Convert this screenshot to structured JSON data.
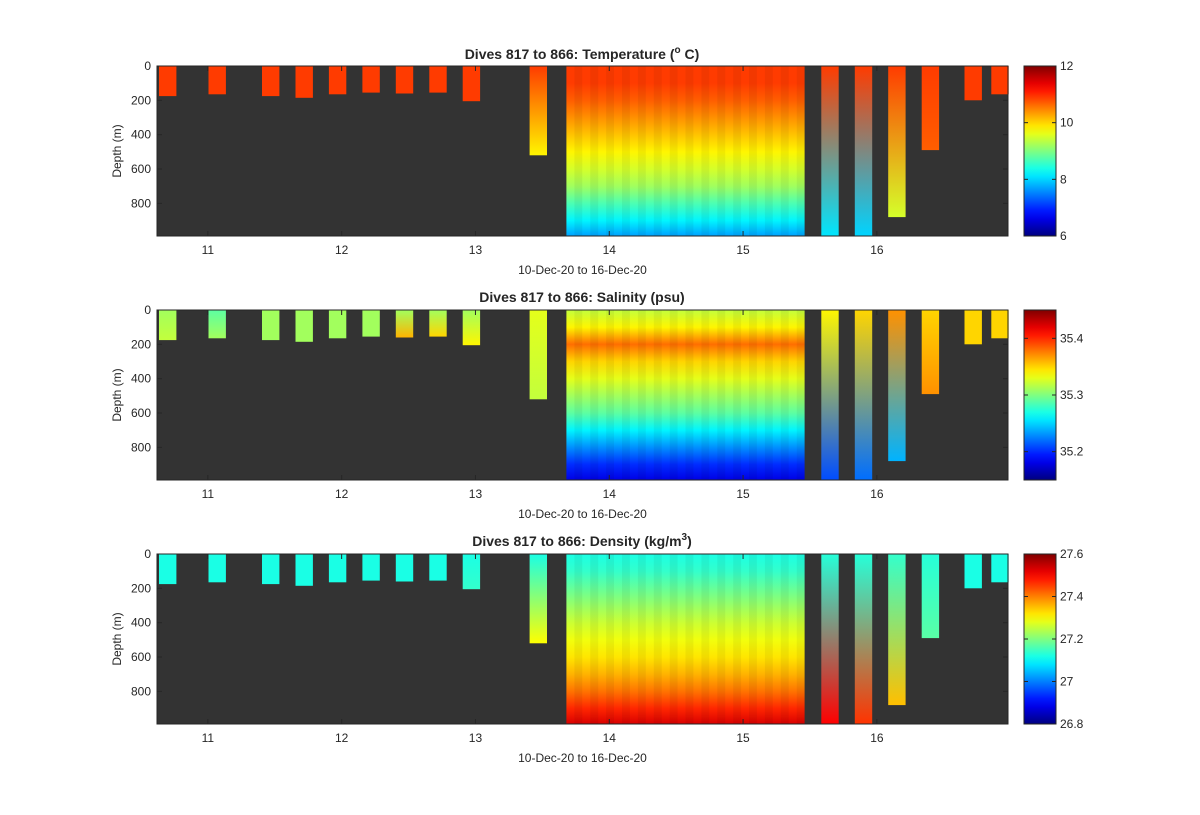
{
  "figure_label": "10-Dec-20 to 16-Dec-20",
  "colors": {
    "background": "#333333",
    "axis": "#262626",
    "colormap": "jet"
  },
  "chart_data": [
    {
      "type": "heatmap",
      "variable": "temperature",
      "title": "Dives 817 to 866: Temperature (° C)",
      "title_parts": {
        "pre": "Dives 817 to 866: Temperature (",
        "sup": "o",
        "post": " C)"
      },
      "xlabel": "10-Dec-20 to 16-Dec-20",
      "ylabel": "Depth (m)",
      "xlim": [
        10.62,
        16.98
      ],
      "ylim": [
        0,
        990
      ],
      "y_reversed": true,
      "x_ticks": [
        11,
        12,
        13,
        14,
        15,
        16
      ],
      "y_ticks": [
        0,
        200,
        400,
        600,
        800
      ],
      "colorbar": {
        "clim": [
          6,
          12
        ],
        "ticks": [
          6,
          8,
          10,
          12
        ]
      },
      "profiles": [
        {
          "x": 10.7,
          "max_depth": 175,
          "surface": 10.9,
          "bottom": 10.9
        },
        {
          "x": 11.07,
          "max_depth": 165,
          "surface": 10.9,
          "bottom": 10.9
        },
        {
          "x": 11.47,
          "max_depth": 175,
          "surface": 10.9,
          "bottom": 10.9
        },
        {
          "x": 11.72,
          "max_depth": 185,
          "surface": 10.9,
          "bottom": 10.9
        },
        {
          "x": 11.97,
          "max_depth": 165,
          "surface": 10.9,
          "bottom": 10.9
        },
        {
          "x": 12.22,
          "max_depth": 155,
          "surface": 10.9,
          "bottom": 10.9
        },
        {
          "x": 12.47,
          "max_depth": 160,
          "surface": 10.9,
          "bottom": 10.9
        },
        {
          "x": 12.72,
          "max_depth": 155,
          "surface": 10.9,
          "bottom": 10.9
        },
        {
          "x": 12.97,
          "max_depth": 205,
          "surface": 10.9,
          "bottom": 10.9
        },
        {
          "x": 13.47,
          "max_depth": 520,
          "surface": 10.9,
          "bottom": 9.8
        },
        {
          "x": 15.65,
          "max_depth": 990,
          "surface": 10.9,
          "bottom": 8.1
        },
        {
          "x": 15.9,
          "max_depth": 990,
          "surface": 10.9,
          "bottom": 8.0
        },
        {
          "x": 16.15,
          "max_depth": 880,
          "surface": 10.9,
          "bottom": 9.5
        },
        {
          "x": 16.4,
          "max_depth": 490,
          "surface": 10.9,
          "bottom": 10.7
        },
        {
          "x": 16.72,
          "max_depth": 200,
          "surface": 10.9,
          "bottom": 10.9
        },
        {
          "x": 16.92,
          "max_depth": 165,
          "surface": 10.9,
          "bottom": 10.9
        }
      ],
      "dense_block": {
        "x_range": [
          13.68,
          15.46
        ],
        "max_depth": 990,
        "depth_levels": [
          0,
          100,
          200,
          300,
          400,
          500,
          600,
          700,
          800,
          900,
          990
        ],
        "values": [
          10.9,
          10.9,
          10.7,
          10.4,
          10.1,
          9.8,
          9.5,
          9.2,
          8.7,
          8.2,
          7.7
        ]
      }
    },
    {
      "type": "heatmap",
      "variable": "salinity",
      "title": "Dives 817 to 866: Salinity (psu)",
      "title_parts": {
        "pre": "Dives 817 to 866: Salinity (psu)",
        "sup": "",
        "post": ""
      },
      "xlabel": "10-Dec-20 to 16-Dec-20",
      "ylabel": "Depth (m)",
      "xlim": [
        10.62,
        16.98
      ],
      "ylim": [
        0,
        990
      ],
      "y_reversed": true,
      "x_ticks": [
        11,
        12,
        13,
        14,
        15,
        16
      ],
      "y_ticks": [
        0,
        200,
        400,
        600,
        800
      ],
      "colorbar": {
        "clim": [
          35.15,
          35.45
        ],
        "ticks": [
          35.2,
          35.3,
          35.4
        ]
      },
      "profiles": [
        {
          "x": 10.7,
          "max_depth": 175,
          "surface": 35.31,
          "bottom": 35.32
        },
        {
          "x": 11.07,
          "max_depth": 165,
          "surface": 35.29,
          "bottom": 35.31
        },
        {
          "x": 11.47,
          "max_depth": 175,
          "surface": 35.31,
          "bottom": 35.31
        },
        {
          "x": 11.72,
          "max_depth": 185,
          "surface": 35.31,
          "bottom": 35.31
        },
        {
          "x": 11.97,
          "max_depth": 165,
          "surface": 35.31,
          "bottom": 35.31
        },
        {
          "x": 12.22,
          "max_depth": 155,
          "surface": 35.31,
          "bottom": 35.31
        },
        {
          "x": 12.47,
          "max_depth": 160,
          "surface": 35.31,
          "bottom": 35.36
        },
        {
          "x": 12.72,
          "max_depth": 155,
          "surface": 35.31,
          "bottom": 35.35
        },
        {
          "x": 12.97,
          "max_depth": 205,
          "surface": 35.31,
          "bottom": 35.34
        },
        {
          "x": 13.47,
          "max_depth": 520,
          "surface": 35.33,
          "bottom": 35.32
        },
        {
          "x": 15.65,
          "max_depth": 990,
          "surface": 35.34,
          "bottom": 35.21
        },
        {
          "x": 15.9,
          "max_depth": 990,
          "surface": 35.35,
          "bottom": 35.22
        },
        {
          "x": 16.15,
          "max_depth": 880,
          "surface": 35.37,
          "bottom": 35.24
        },
        {
          "x": 16.4,
          "max_depth": 490,
          "surface": 35.35,
          "bottom": 35.37
        },
        {
          "x": 16.72,
          "max_depth": 200,
          "surface": 35.35,
          "bottom": 35.35
        },
        {
          "x": 16.92,
          "max_depth": 165,
          "surface": 35.35,
          "bottom": 35.35
        }
      ],
      "dense_block": {
        "x_range": [
          13.68,
          15.46
        ],
        "max_depth": 990,
        "depth_levels": [
          0,
          100,
          200,
          300,
          400,
          500,
          600,
          700,
          800,
          900,
          990
        ],
        "values": [
          35.32,
          35.34,
          35.38,
          35.35,
          35.33,
          35.31,
          35.29,
          35.26,
          35.23,
          35.2,
          35.18
        ]
      }
    },
    {
      "type": "heatmap",
      "variable": "density",
      "title": "Dives 817 to 866: Density (kg/m³)",
      "title_parts": {
        "pre": "Dives 817 to 866: Density (kg/m",
        "sup": "3",
        "post": ")"
      },
      "xlabel": "10-Dec-20 to 16-Dec-20",
      "ylabel": "Depth (m)",
      "xlim": [
        10.62,
        16.98
      ],
      "ylim": [
        0,
        990
      ],
      "y_reversed": true,
      "x_ticks": [
        11,
        12,
        13,
        14,
        15,
        16
      ],
      "y_ticks": [
        0,
        200,
        400,
        600,
        800
      ],
      "colorbar": {
        "clim": [
          26.8,
          27.6
        ],
        "ticks": [
          26.8,
          27,
          27.2,
          27.4,
          27.6
        ]
      },
      "profiles": [
        {
          "x": 10.7,
          "max_depth": 175,
          "surface": 27.12,
          "bottom": 27.12
        },
        {
          "x": 11.07,
          "max_depth": 165,
          "surface": 27.12,
          "bottom": 27.12
        },
        {
          "x": 11.47,
          "max_depth": 175,
          "surface": 27.12,
          "bottom": 27.12
        },
        {
          "x": 11.72,
          "max_depth": 185,
          "surface": 27.12,
          "bottom": 27.12
        },
        {
          "x": 11.97,
          "max_depth": 165,
          "surface": 27.12,
          "bottom": 27.12
        },
        {
          "x": 12.22,
          "max_depth": 155,
          "surface": 27.12,
          "bottom": 27.12
        },
        {
          "x": 12.47,
          "max_depth": 160,
          "surface": 27.12,
          "bottom": 27.12
        },
        {
          "x": 12.72,
          "max_depth": 155,
          "surface": 27.12,
          "bottom": 27.12
        },
        {
          "x": 12.97,
          "max_depth": 205,
          "surface": 27.12,
          "bottom": 27.14
        },
        {
          "x": 13.47,
          "max_depth": 520,
          "surface": 27.12,
          "bottom": 27.3
        },
        {
          "x": 15.65,
          "max_depth": 990,
          "surface": 27.13,
          "bottom": 27.5
        },
        {
          "x": 15.9,
          "max_depth": 990,
          "surface": 27.13,
          "bottom": 27.46
        },
        {
          "x": 16.15,
          "max_depth": 880,
          "surface": 27.14,
          "bottom": 27.35
        },
        {
          "x": 16.4,
          "max_depth": 490,
          "surface": 27.13,
          "bottom": 27.17
        },
        {
          "x": 16.72,
          "max_depth": 200,
          "surface": 27.12,
          "bottom": 27.12
        },
        {
          "x": 16.92,
          "max_depth": 165,
          "surface": 27.12,
          "bottom": 27.12
        }
      ],
      "dense_block": {
        "x_range": [
          13.68,
          15.46
        ],
        "max_depth": 990,
        "depth_levels": [
          0,
          100,
          200,
          300,
          400,
          500,
          600,
          700,
          800,
          900,
          990
        ],
        "values": [
          27.12,
          27.14,
          27.18,
          27.22,
          27.26,
          27.29,
          27.32,
          27.36,
          27.41,
          27.47,
          27.53
        ]
      }
    }
  ]
}
